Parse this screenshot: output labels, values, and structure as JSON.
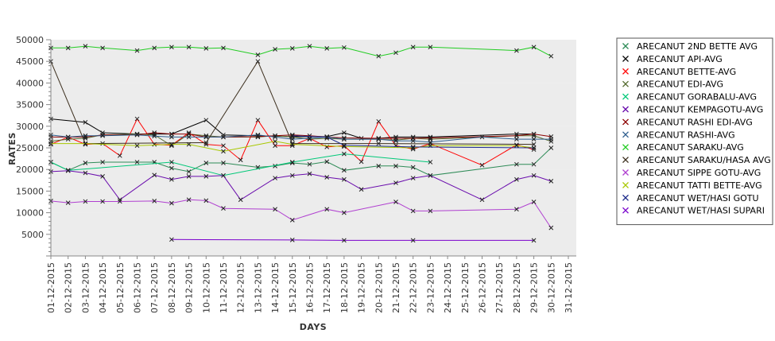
{
  "chart_data": {
    "type": "line",
    "xlabel": "DAYS",
    "ylabel": "RATES",
    "ylim": [
      0,
      50000
    ],
    "y_ticks": [
      5000,
      10000,
      15000,
      20000,
      25000,
      30000,
      35000,
      40000,
      45000,
      50000
    ],
    "grid": "alternating horizontal bands",
    "legend_position": "right",
    "categories": [
      "01-12-2015",
      "02-12-2015",
      "03-12-2015",
      "04-12-2015",
      "05-12-2015",
      "06-12-2015",
      "07-12-2015",
      "08-12-2015",
      "09-12-2015",
      "10-12-2015",
      "11-12-2015",
      "12-12-2015",
      "13-12-2015",
      "14-12-2015",
      "15-12-2015",
      "16-12-2015",
      "17-12-2015",
      "18-12-2015",
      "19-12-2015",
      "20-12-2015",
      "21-12-2015",
      "22-12-2015",
      "23-12-2015",
      "24-12-2015",
      "25-12-2015",
      "26-12-2015",
      "27-12-2015",
      "28-12-2015",
      "29-12-2015",
      "30-12-2015",
      "31-12-2015"
    ],
    "series": [
      {
        "name": "ARECANUT 2ND BETTE AVG",
        "color": "#2e8b57",
        "points": [
          [
            0,
            21700
          ],
          [
            1,
            19800
          ],
          [
            2,
            21500
          ],
          [
            3,
            21700
          ],
          [
            5,
            21700
          ],
          [
            6,
            21700
          ],
          [
            7,
            20300
          ],
          [
            8,
            19500
          ],
          [
            9,
            21500
          ],
          [
            10,
            21500
          ],
          [
            12,
            20500
          ],
          [
            13,
            20800
          ],
          [
            14,
            21500
          ],
          [
            15,
            21200
          ],
          [
            16,
            21800
          ],
          [
            17,
            19800
          ],
          [
            19,
            20800
          ],
          [
            20,
            20800
          ],
          [
            21,
            20500
          ],
          [
            22,
            18600
          ],
          [
            27,
            21200
          ],
          [
            28,
            21200
          ],
          [
            29,
            25000
          ]
        ]
      },
      {
        "name": "ARECANUT API-AVG",
        "color": "#000000",
        "points": [
          [
            0,
            31700
          ],
          [
            2,
            30900
          ],
          [
            3,
            28500
          ],
          [
            5,
            28200
          ],
          [
            6,
            28200
          ],
          [
            7,
            28200
          ],
          [
            9,
            31400
          ],
          [
            10,
            28000
          ],
          [
            12,
            27800
          ],
          [
            14,
            27600
          ],
          [
            16,
            27600
          ],
          [
            17,
            28500
          ],
          [
            18,
            27200
          ],
          [
            19,
            27200
          ],
          [
            20,
            27500
          ],
          [
            21,
            27500
          ],
          [
            22,
            27500
          ],
          [
            27,
            28200
          ],
          [
            28,
            28200
          ]
        ]
      },
      {
        "name": "ARECANUT BETTE-AVG",
        "color": "#ff0000",
        "points": [
          [
            0,
            25800
          ],
          [
            1,
            27500
          ],
          [
            2,
            25800
          ],
          [
            3,
            26000
          ],
          [
            4,
            23200
          ],
          [
            5,
            31700
          ],
          [
            6,
            25800
          ],
          [
            7,
            25600
          ],
          [
            8,
            28500
          ],
          [
            9,
            25800
          ],
          [
            10,
            25500
          ],
          [
            11,
            22200
          ],
          [
            12,
            31400
          ],
          [
            13,
            25500
          ],
          [
            14,
            25500
          ],
          [
            15,
            27200
          ],
          [
            16,
            25200
          ],
          [
            17,
            25500
          ],
          [
            18,
            21800
          ],
          [
            19,
            31100
          ],
          [
            20,
            25500
          ],
          [
            21,
            24700
          ],
          [
            22,
            26000
          ],
          [
            25,
            21000
          ],
          [
            27,
            25700
          ],
          [
            28,
            24600
          ]
        ]
      },
      {
        "name": "ARECANUT EDI-AVG",
        "color": "#556b2f",
        "points": [
          [
            0,
            26500
          ],
          [
            1,
            27000
          ],
          [
            2,
            27200
          ],
          [
            3,
            28000
          ],
          [
            5,
            28200
          ],
          [
            6,
            28000
          ],
          [
            7,
            25500
          ],
          [
            8,
            28200
          ],
          [
            9,
            27800
          ],
          [
            10,
            27500
          ],
          [
            12,
            27500
          ],
          [
            13,
            27800
          ],
          [
            14,
            27500
          ],
          [
            15,
            27000
          ],
          [
            16,
            27200
          ],
          [
            17,
            27000
          ],
          [
            19,
            27000
          ],
          [
            20,
            26800
          ],
          [
            21,
            27200
          ],
          [
            22,
            27000
          ],
          [
            27,
            27800
          ],
          [
            28,
            27800
          ],
          [
            29,
            26500
          ]
        ]
      },
      {
        "name": "ARECANUT GORABALU-AVG",
        "color": "#00c878",
        "points": [
          [
            0,
            21700
          ],
          [
            1,
            19800
          ],
          [
            7,
            21700
          ],
          [
            10,
            18600
          ],
          [
            14,
            21700
          ],
          [
            17,
            23600
          ],
          [
            22,
            21700
          ]
        ]
      },
      {
        "name": "ARECANUT KEMPAGOTU-AVG",
        "color": "#6a0dad",
        "points": [
          [
            0,
            19500
          ],
          [
            1,
            19700
          ],
          [
            2,
            19200
          ],
          [
            3,
            18400
          ],
          [
            4,
            13000
          ],
          [
            6,
            18700
          ],
          [
            7,
            17700
          ],
          [
            8,
            18400
          ],
          [
            9,
            18400
          ],
          [
            10,
            18600
          ],
          [
            11,
            13000
          ],
          [
            13,
            18000
          ],
          [
            14,
            18600
          ],
          [
            15,
            19000
          ],
          [
            16,
            18200
          ],
          [
            17,
            17700
          ],
          [
            18,
            15400
          ],
          [
            20,
            16900
          ],
          [
            21,
            18000
          ],
          [
            22,
            18600
          ],
          [
            25,
            13000
          ],
          [
            27,
            17700
          ],
          [
            28,
            18600
          ],
          [
            29,
            17300
          ]
        ]
      },
      {
        "name": "ARECANUT RASHI EDI-AVG",
        "color": "#8b0000",
        "points": [
          [
            0,
            27500
          ],
          [
            1,
            27500
          ],
          [
            2,
            27500
          ],
          [
            3,
            28000
          ],
          [
            5,
            28000
          ],
          [
            6,
            28500
          ],
          [
            7,
            28200
          ],
          [
            8,
            28200
          ],
          [
            9,
            27500
          ],
          [
            10,
            27500
          ],
          [
            12,
            27600
          ],
          [
            13,
            27800
          ],
          [
            14,
            28000
          ],
          [
            15,
            27800
          ],
          [
            16,
            27500
          ],
          [
            17,
            27300
          ],
          [
            19,
            27200
          ],
          [
            20,
            27200
          ],
          [
            21,
            27200
          ],
          [
            22,
            27300
          ],
          [
            27,
            27800
          ],
          [
            28,
            28200
          ],
          [
            29,
            27600
          ]
        ]
      },
      {
        "name": "ARECANUT RASHI-AVG",
        "color": "#2f5f8f",
        "points": [
          [
            0,
            28000
          ],
          [
            1,
            27500
          ],
          [
            2,
            27800
          ],
          [
            3,
            27800
          ],
          [
            5,
            28000
          ],
          [
            6,
            27700
          ],
          [
            7,
            27500
          ],
          [
            8,
            27500
          ],
          [
            9,
            27500
          ],
          [
            10,
            27500
          ],
          [
            12,
            28000
          ],
          [
            13,
            27500
          ],
          [
            14,
            27000
          ],
          [
            15,
            27200
          ],
          [
            16,
            27500
          ],
          [
            17,
            27000
          ],
          [
            19,
            27000
          ],
          [
            20,
            26600
          ],
          [
            21,
            26600
          ],
          [
            22,
            26300
          ],
          [
            25,
            27500
          ],
          [
            27,
            27000
          ],
          [
            28,
            27000
          ],
          [
            29,
            27000
          ]
        ]
      },
      {
        "name": "ARECANUT SARAKU-AVG",
        "color": "#22cc22",
        "points": [
          [
            0,
            48100
          ],
          [
            1,
            48100
          ],
          [
            2,
            48500
          ],
          [
            3,
            48100
          ],
          [
            5,
            47500
          ],
          [
            6,
            48100
          ],
          [
            7,
            48300
          ],
          [
            8,
            48300
          ],
          [
            9,
            48000
          ],
          [
            10,
            48100
          ],
          [
            12,
            46500
          ],
          [
            13,
            47800
          ],
          [
            14,
            48000
          ],
          [
            15,
            48500
          ],
          [
            16,
            48000
          ],
          [
            17,
            48200
          ],
          [
            19,
            46200
          ],
          [
            20,
            47000
          ],
          [
            21,
            48300
          ],
          [
            22,
            48300
          ],
          [
            27,
            47500
          ],
          [
            28,
            48300
          ],
          [
            29,
            46200
          ]
        ]
      },
      {
        "name": "ARECANUT SARAKU/HASA AVG",
        "color": "#3c2f1e",
        "points": [
          [
            0,
            45000
          ],
          [
            2,
            26000
          ],
          [
            9,
            26200
          ],
          [
            12,
            45000
          ],
          [
            14,
            26000
          ],
          [
            19,
            26000
          ],
          [
            28,
            25800
          ]
        ]
      },
      {
        "name": "ARECANUT SIPPE GOTU-AVG",
        "color": "#b040d0",
        "points": [
          [
            0,
            12700
          ],
          [
            1,
            12300
          ],
          [
            2,
            12600
          ],
          [
            3,
            12600
          ],
          [
            4,
            12600
          ],
          [
            6,
            12700
          ],
          [
            7,
            12200
          ],
          [
            8,
            13000
          ],
          [
            9,
            12800
          ],
          [
            10,
            11000
          ],
          [
            13,
            10800
          ],
          [
            14,
            8300
          ],
          [
            16,
            10800
          ],
          [
            17,
            10000
          ],
          [
            20,
            12500
          ],
          [
            21,
            10400
          ],
          [
            22,
            10400
          ],
          [
            27,
            10800
          ],
          [
            28,
            12500
          ],
          [
            29,
            6500
          ]
        ]
      },
      {
        "name": "ARECANUT TATTI BETTE-AVG",
        "color": "#a8c800",
        "points": [
          [
            0,
            26000
          ],
          [
            2,
            26000
          ],
          [
            5,
            25500
          ],
          [
            7,
            25800
          ],
          [
            8,
            25800
          ],
          [
            10,
            24200
          ],
          [
            13,
            26500
          ],
          [
            14,
            25800
          ],
          [
            17,
            25300
          ],
          [
            21,
            25000
          ],
          [
            22,
            25500
          ],
          [
            27,
            25500
          ],
          [
            28,
            25000
          ]
        ]
      },
      {
        "name": "ARECANUT WET/HASI GOTU",
        "color": "#1b2a8a",
        "points": [
          [
            14,
            27800
          ],
          [
            16,
            27500
          ],
          [
            17,
            25600
          ],
          [
            21,
            25200
          ],
          [
            28,
            25000
          ]
        ]
      },
      {
        "name": "ARECANUT WET/HASI SUPARI",
        "color": "#7a00cc",
        "points": [
          [
            7,
            3800
          ],
          [
            14,
            3700
          ],
          [
            17,
            3600
          ],
          [
            21,
            3600
          ],
          [
            28,
            3600
          ]
        ]
      }
    ]
  }
}
